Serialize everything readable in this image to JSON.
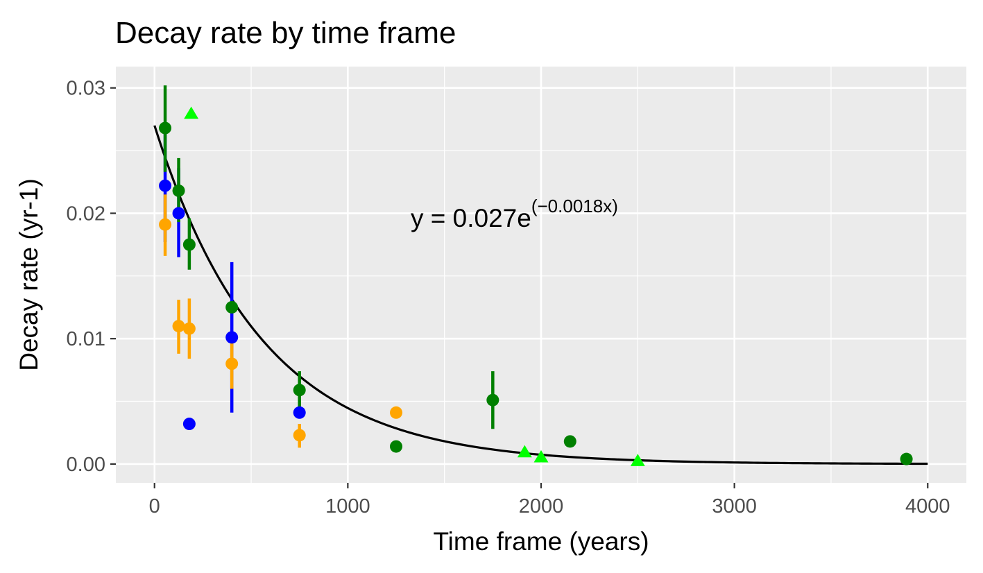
{
  "chart_data": {
    "type": "scatter",
    "title": "Decay rate by time frame",
    "xlabel": "Time frame (years)",
    "ylabel": "Decay rate (yr-1)",
    "xlim": [
      -200,
      4200
    ],
    "ylim": [
      -0.0015,
      0.0317
    ],
    "x_ticks": [
      0,
      1000,
      2000,
      3000,
      4000
    ],
    "x_tick_labels": [
      "0",
      "1000",
      "2000",
      "3000",
      "4000"
    ],
    "y_ticks": [
      0,
      0.01,
      0.02,
      0.03
    ],
    "y_tick_labels": [
      "0.00",
      "0.01",
      "0.02",
      "0.03"
    ],
    "grid": true,
    "legend": "none",
    "colors": {
      "blue": "#0000ff",
      "green": "#008000",
      "orange": "#ffa500",
      "lime": "#00ff00",
      "panel": "#ebebeb",
      "gridline": "#ffffff",
      "fit": "#000000"
    },
    "series": [
      {
        "color": "blue",
        "shape": "circle",
        "points": [
          {
            "x": 55,
            "y": 0.0222,
            "lo": 0.0177,
            "hi": 0.0267
          },
          {
            "x": 125,
            "y": 0.02,
            "lo": 0.0165,
            "hi": 0.0236
          },
          {
            "x": 180,
            "y": 0.0032
          },
          {
            "x": 400,
            "y": 0.0101,
            "lo": 0.0041,
            "hi": 0.0161
          },
          {
            "x": 750,
            "y": 0.0041
          }
        ]
      },
      {
        "color": "green",
        "shape": "circle",
        "points": [
          {
            "x": 55,
            "y": 0.0268,
            "lo": 0.0233,
            "hi": 0.0302
          },
          {
            "x": 125,
            "y": 0.0218,
            "lo": 0.0193,
            "hi": 0.0244
          },
          {
            "x": 180,
            "y": 0.0175,
            "lo": 0.0155,
            "hi": 0.0196
          },
          {
            "x": 400,
            "y": 0.0125
          },
          {
            "x": 750,
            "y": 0.0059,
            "lo": 0.0044,
            "hi": 0.0074
          },
          {
            "x": 1250,
            "y": 0.0014
          },
          {
            "x": 1750,
            "y": 0.0051,
            "lo": 0.0028,
            "hi": 0.0074
          },
          {
            "x": 2150,
            "y": 0.0018
          },
          {
            "x": 3890,
            "y": 0.0004
          }
        ]
      },
      {
        "color": "orange",
        "shape": "circle",
        "points": [
          {
            "x": 55,
            "y": 0.0191,
            "lo": 0.0166,
            "hi": 0.0215
          },
          {
            "x": 125,
            "y": 0.011,
            "lo": 0.0088,
            "hi": 0.0131
          },
          {
            "x": 180,
            "y": 0.0108,
            "lo": 0.0084,
            "hi": 0.0132
          },
          {
            "x": 400,
            "y": 0.008,
            "lo": 0.006,
            "hi": 0.01
          },
          {
            "x": 750,
            "y": 0.0023,
            "lo": 0.0013,
            "hi": 0.0032
          },
          {
            "x": 1250,
            "y": 0.0041
          }
        ]
      },
      {
        "color": "lime",
        "shape": "triangle",
        "points": [
          {
            "x": 190,
            "y": 0.0279
          },
          {
            "x": 1915,
            "y": 0.0009
          },
          {
            "x": 2000,
            "y": 0.0005
          },
          {
            "x": 2500,
            "y": 0.0002
          }
        ]
      }
    ],
    "fit": {
      "type": "exponential",
      "a": 0.027,
      "b": -0.0018,
      "x_range": [
        0,
        4000
      ]
    },
    "annotation": {
      "main": "y = 0.027e",
      "superscript": "(−0.0018x)"
    }
  }
}
